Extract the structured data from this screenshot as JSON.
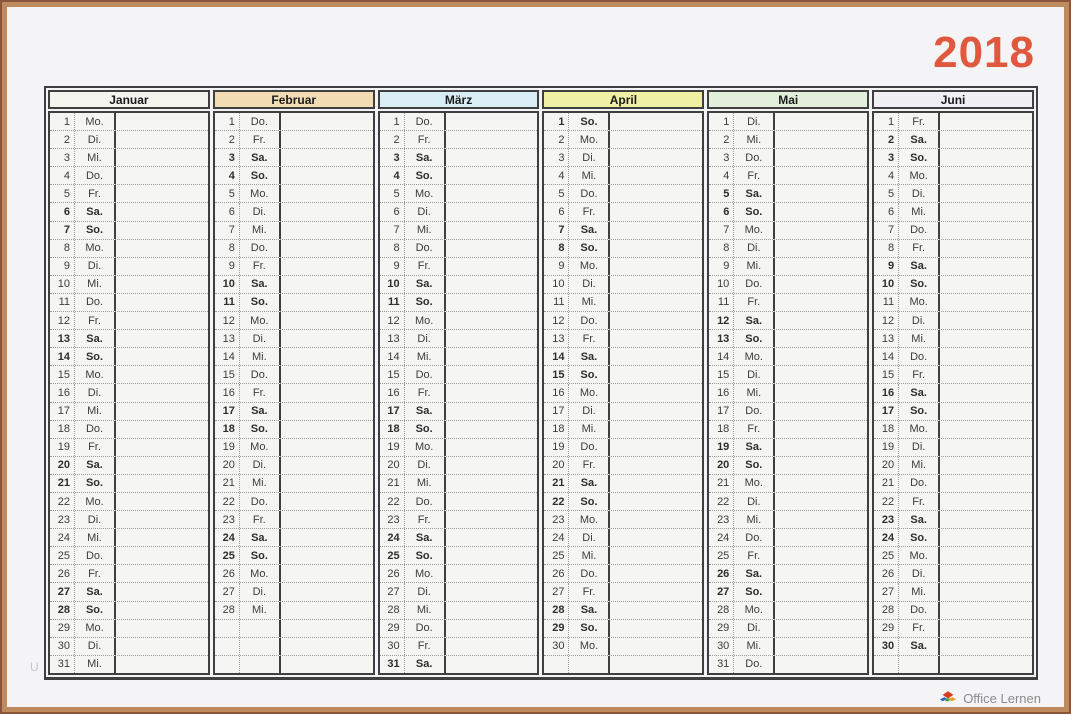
{
  "page": {
    "year": "2018",
    "year_color": "#e0593f",
    "watermark": "U",
    "brand": "Office Lernen"
  },
  "calendar": {
    "total_rows": 31,
    "months": [
      {
        "name": "Januar",
        "header_color": "#f4f4ee",
        "days": [
          [
            1,
            "Mo."
          ],
          [
            2,
            "Di."
          ],
          [
            3,
            "Mi."
          ],
          [
            4,
            "Do."
          ],
          [
            5,
            "Fr."
          ],
          [
            6,
            "Sa."
          ],
          [
            7,
            "So."
          ],
          [
            8,
            "Mo."
          ],
          [
            9,
            "Di."
          ],
          [
            10,
            "Mi."
          ],
          [
            11,
            "Do."
          ],
          [
            12,
            "Fr."
          ],
          [
            13,
            "Sa."
          ],
          [
            14,
            "So."
          ],
          [
            15,
            "Mo."
          ],
          [
            16,
            "Di."
          ],
          [
            17,
            "Mi."
          ],
          [
            18,
            "Do."
          ],
          [
            19,
            "Fr."
          ],
          [
            20,
            "Sa."
          ],
          [
            21,
            "So."
          ],
          [
            22,
            "Mo."
          ],
          [
            23,
            "Di."
          ],
          [
            24,
            "Mi."
          ],
          [
            25,
            "Do."
          ],
          [
            26,
            "Fr."
          ],
          [
            27,
            "Sa."
          ],
          [
            28,
            "So."
          ],
          [
            29,
            "Mo."
          ],
          [
            30,
            "Di."
          ],
          [
            31,
            "Mi."
          ]
        ]
      },
      {
        "name": "Februar",
        "header_color": "#f2dcb4",
        "days": [
          [
            1,
            "Do."
          ],
          [
            2,
            "Fr."
          ],
          [
            3,
            "Sa."
          ],
          [
            4,
            "So."
          ],
          [
            5,
            "Mo."
          ],
          [
            6,
            "Di."
          ],
          [
            7,
            "Mi."
          ],
          [
            8,
            "Do."
          ],
          [
            9,
            "Fr."
          ],
          [
            10,
            "Sa."
          ],
          [
            11,
            "So."
          ],
          [
            12,
            "Mo."
          ],
          [
            13,
            "Di."
          ],
          [
            14,
            "Mi."
          ],
          [
            15,
            "Do."
          ],
          [
            16,
            "Fr."
          ],
          [
            17,
            "Sa."
          ],
          [
            18,
            "So."
          ],
          [
            19,
            "Mo."
          ],
          [
            20,
            "Di."
          ],
          [
            21,
            "Mi."
          ],
          [
            22,
            "Do."
          ],
          [
            23,
            "Fr."
          ],
          [
            24,
            "Sa."
          ],
          [
            25,
            "So."
          ],
          [
            26,
            "Mo."
          ],
          [
            27,
            "Di."
          ],
          [
            28,
            "Mi."
          ]
        ]
      },
      {
        "name": "März",
        "header_color": "#d8edf4",
        "days": [
          [
            1,
            "Do."
          ],
          [
            2,
            "Fr."
          ],
          [
            3,
            "Sa."
          ],
          [
            4,
            "So."
          ],
          [
            5,
            "Mo."
          ],
          [
            6,
            "Di."
          ],
          [
            7,
            "Mi."
          ],
          [
            8,
            "Do."
          ],
          [
            9,
            "Fr."
          ],
          [
            10,
            "Sa."
          ],
          [
            11,
            "So."
          ],
          [
            12,
            "Mo."
          ],
          [
            13,
            "Di."
          ],
          [
            14,
            "Mi."
          ],
          [
            15,
            "Do."
          ],
          [
            16,
            "Fr."
          ],
          [
            17,
            "Sa."
          ],
          [
            18,
            "So."
          ],
          [
            19,
            "Mo."
          ],
          [
            20,
            "Di."
          ],
          [
            21,
            "Mi."
          ],
          [
            22,
            "Do."
          ],
          [
            23,
            "Fr."
          ],
          [
            24,
            "Sa."
          ],
          [
            25,
            "So."
          ],
          [
            26,
            "Mo."
          ],
          [
            27,
            "Di."
          ],
          [
            28,
            "Mi."
          ],
          [
            29,
            "Do."
          ],
          [
            30,
            "Fr."
          ],
          [
            31,
            "Sa."
          ]
        ]
      },
      {
        "name": "April",
        "header_color": "#eff0a3",
        "days": [
          [
            1,
            "So."
          ],
          [
            2,
            "Mo."
          ],
          [
            3,
            "Di."
          ],
          [
            4,
            "Mi."
          ],
          [
            5,
            "Do."
          ],
          [
            6,
            "Fr."
          ],
          [
            7,
            "Sa."
          ],
          [
            8,
            "So."
          ],
          [
            9,
            "Mo."
          ],
          [
            10,
            "Di."
          ],
          [
            11,
            "Mi."
          ],
          [
            12,
            "Do."
          ],
          [
            13,
            "Fr."
          ],
          [
            14,
            "Sa."
          ],
          [
            15,
            "So."
          ],
          [
            16,
            "Mo."
          ],
          [
            17,
            "Di."
          ],
          [
            18,
            "Mi."
          ],
          [
            19,
            "Do."
          ],
          [
            20,
            "Fr."
          ],
          [
            21,
            "Sa."
          ],
          [
            22,
            "So."
          ],
          [
            23,
            "Mo."
          ],
          [
            24,
            "Di."
          ],
          [
            25,
            "Mi."
          ],
          [
            26,
            "Do."
          ],
          [
            27,
            "Fr."
          ],
          [
            28,
            "Sa."
          ],
          [
            29,
            "So."
          ],
          [
            30,
            "Mo."
          ]
        ]
      },
      {
        "name": "Mai",
        "header_color": "#e2efda",
        "days": [
          [
            1,
            "Di."
          ],
          [
            2,
            "Mi."
          ],
          [
            3,
            "Do."
          ],
          [
            4,
            "Fr."
          ],
          [
            5,
            "Sa."
          ],
          [
            6,
            "So."
          ],
          [
            7,
            "Mo."
          ],
          [
            8,
            "Di."
          ],
          [
            9,
            "Mi."
          ],
          [
            10,
            "Do."
          ],
          [
            11,
            "Fr."
          ],
          [
            12,
            "Sa."
          ],
          [
            13,
            "So."
          ],
          [
            14,
            "Mo."
          ],
          [
            15,
            "Di."
          ],
          [
            16,
            "Mi."
          ],
          [
            17,
            "Do."
          ],
          [
            18,
            "Fr."
          ],
          [
            19,
            "Sa."
          ],
          [
            20,
            "So."
          ],
          [
            21,
            "Mo."
          ],
          [
            22,
            "Di."
          ],
          [
            23,
            "Mi."
          ],
          [
            24,
            "Do."
          ],
          [
            25,
            "Fr."
          ],
          [
            26,
            "Sa."
          ],
          [
            27,
            "So."
          ],
          [
            28,
            "Mo."
          ],
          [
            29,
            "Di."
          ],
          [
            30,
            "Mi."
          ],
          [
            31,
            "Do."
          ]
        ]
      },
      {
        "name": "Juni",
        "header_color": "#f0f0f4",
        "days": [
          [
            1,
            "Fr."
          ],
          [
            2,
            "Sa."
          ],
          [
            3,
            "So."
          ],
          [
            4,
            "Mo."
          ],
          [
            5,
            "Di."
          ],
          [
            6,
            "Mi."
          ],
          [
            7,
            "Do."
          ],
          [
            8,
            "Fr."
          ],
          [
            9,
            "Sa."
          ],
          [
            10,
            "So."
          ],
          [
            11,
            "Mo."
          ],
          [
            12,
            "Di."
          ],
          [
            13,
            "Mi."
          ],
          [
            14,
            "Do."
          ],
          [
            15,
            "Fr."
          ],
          [
            16,
            "Sa."
          ],
          [
            17,
            "So."
          ],
          [
            18,
            "Mo."
          ],
          [
            19,
            "Di."
          ],
          [
            20,
            "Mi."
          ],
          [
            21,
            "Do."
          ],
          [
            22,
            "Fr."
          ],
          [
            23,
            "Sa."
          ],
          [
            24,
            "So."
          ],
          [
            25,
            "Mo."
          ],
          [
            26,
            "Di."
          ],
          [
            27,
            "Mi."
          ],
          [
            28,
            "Do."
          ],
          [
            29,
            "Fr."
          ],
          [
            30,
            "Sa."
          ]
        ]
      }
    ]
  }
}
